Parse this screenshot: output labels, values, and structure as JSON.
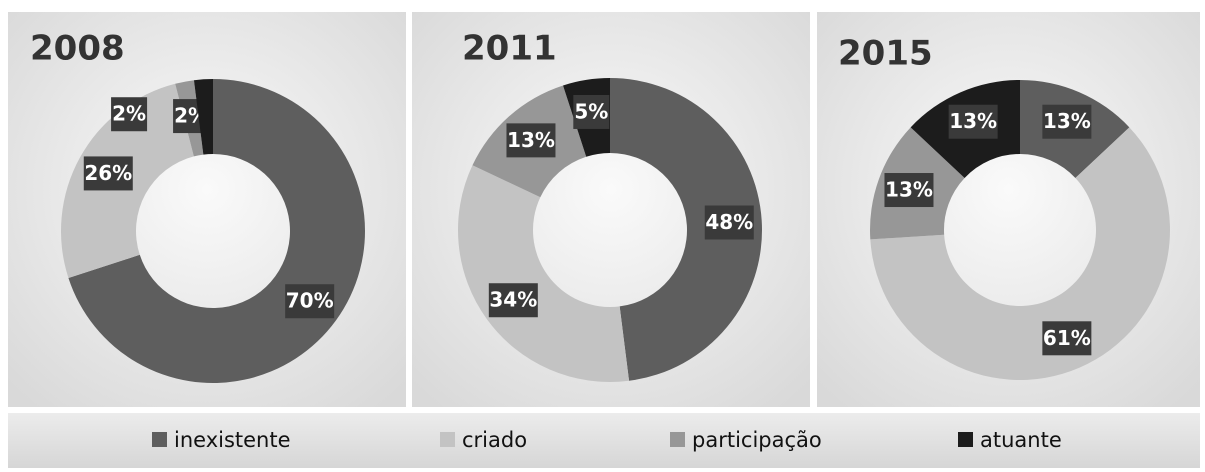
{
  "chart_data": [
    {
      "type": "donut",
      "title": "2008",
      "categories": [
        "inexistente",
        "criado",
        "participação",
        "atuante"
      ],
      "values": [
        70,
        26,
        2,
        2
      ],
      "value_labels": [
        "70%",
        "26%",
        "2%",
        "2%"
      ],
      "colors": [
        "#5e5e5e",
        "#c3c3c3",
        "#979797",
        "#1c1c1c"
      ]
    },
    {
      "type": "donut",
      "title": "2011",
      "categories": [
        "inexistente",
        "criado",
        "participação",
        "atuante"
      ],
      "values": [
        48,
        34,
        13,
        5
      ],
      "value_labels": [
        "48%",
        "34%",
        "13%",
        "5%"
      ],
      "colors": [
        "#5e5e5e",
        "#c3c3c3",
        "#979797",
        "#1c1c1c"
      ]
    },
    {
      "type": "donut",
      "title": "2015",
      "categories": [
        "inexistente",
        "criado",
        "participação",
        "atuante"
      ],
      "values": [
        13,
        61,
        13,
        13
      ],
      "value_labels": [
        "13%",
        "61%",
        "13%",
        "13%"
      ],
      "colors": [
        "#5e5e5e",
        "#c3c3c3",
        "#979797",
        "#1c1c1c"
      ]
    }
  ]
}
